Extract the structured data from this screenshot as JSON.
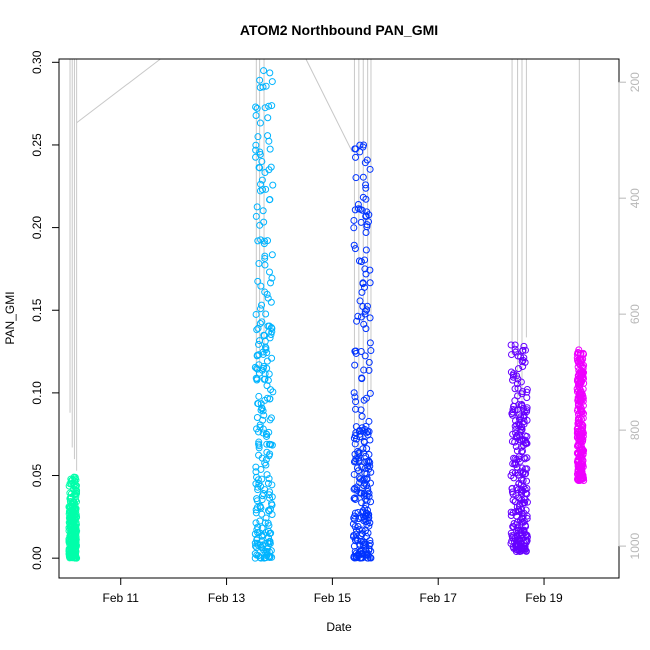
{
  "chart_data": {
    "type": "scatter",
    "title": "ATOM2 Northbound PAN_GMI",
    "xlabel": "Date",
    "ylabel": "PAN_GMI",
    "xlim": [
      "2017-02-09T20:00",
      "2017-02-20T10:00"
    ],
    "ylim": [
      -0.012,
      0.302
    ],
    "x_ticks": [
      {
        "label": "Feb 11",
        "date": "2017-02-11T00:00"
      },
      {
        "label": "Feb 13",
        "date": "2017-02-13T00:00"
      },
      {
        "label": "Feb 15",
        "date": "2017-02-15T00:00"
      },
      {
        "label": "Feb 17",
        "date": "2017-02-17T00:00"
      },
      {
        "label": "Feb 19",
        "date": "2017-02-19T00:00"
      }
    ],
    "y_ticks": [
      "0.00",
      "0.05",
      "0.10",
      "0.15",
      "0.20",
      "0.25",
      "0.30"
    ],
    "secondary_axis": {
      "side": "right",
      "color": "#b8b8b8",
      "reversed": true,
      "ylim": [
        1055,
        160
      ],
      "ticks": [
        "200",
        "400",
        "600",
        "800",
        "1000"
      ]
    },
    "grid": false,
    "legend": "none",
    "series": [
      {
        "color": "#00ffaa",
        "x_start": "2017-02-10T00:30",
        "x_end": "2017-02-10T04:00",
        "y_min": 0.0,
        "y_max": 0.049,
        "y_mid": 0.02
      },
      {
        "color": "#00b4ff",
        "x_start": "2017-02-13T13:00",
        "x_end": "2017-02-13T21:00",
        "y_min": 0.0,
        "y_max": 0.295,
        "y_mid": 0.09
      },
      {
        "color": "#0033ff",
        "x_start": "2017-02-15T09:30",
        "x_end": "2017-02-15T17:30",
        "y_min": 0.0,
        "y_max": 0.25,
        "y_mid": 0.05
      },
      {
        "color": "#6600ff",
        "x_start": "2017-02-18T09:00",
        "x_end": "2017-02-18T16:30",
        "y_min": 0.004,
        "y_max": 0.129,
        "y_mid": 0.06
      },
      {
        "color": "#ee00ff",
        "x_start": "2017-02-19T15:00",
        "x_end": "2017-02-19T18:00",
        "y_min": 0.047,
        "y_max": 0.126,
        "y_mid": 0.09
      }
    ],
    "pressure_trace": {
      "color": "#c8c8c8",
      "units_axis": "right",
      "description_free": true,
      "segments": [
        {
          "x": "2017-02-10T01:00",
          "p_from": 160,
          "p_to": 770
        },
        {
          "x": "2017-02-10T02:00",
          "p_from": 160,
          "p_to": 830
        },
        {
          "x": "2017-02-10T03:00",
          "p_from": 160,
          "p_to": 850
        },
        {
          "x": "2017-02-10T04:00",
          "p_from": 160,
          "p_to": 870
        },
        {
          "x": "2017-02-13T13:30",
          "p_from": 160,
          "p_to": 705
        },
        {
          "x": "2017-02-13T15:00",
          "p_from": 160,
          "p_to": 690
        },
        {
          "x": "2017-02-13T17:00",
          "p_from": 160,
          "p_to": 660
        },
        {
          "x": "2017-02-15T10:00",
          "p_from": 160,
          "p_to": 910
        },
        {
          "x": "2017-02-15T12:00",
          "p_from": 160,
          "p_to": 920
        },
        {
          "x": "2017-02-15T14:00",
          "p_from": 160,
          "p_to": 935
        },
        {
          "x": "2017-02-15T16:00",
          "p_from": 160,
          "p_to": 780
        },
        {
          "x": "2017-02-15T17:30",
          "p_from": 160,
          "p_to": 740
        },
        {
          "x": "2017-02-18T09:30",
          "p_from": 160,
          "p_to": 670
        },
        {
          "x": "2017-02-18T12:00",
          "p_from": 160,
          "p_to": 800
        },
        {
          "x": "2017-02-18T14:00",
          "p_from": 160,
          "p_to": 830
        },
        {
          "x": "2017-02-18T16:00",
          "p_from": 160,
          "p_to": 640
        },
        {
          "x": "2017-02-19T16:00",
          "p_from": 160,
          "p_to": 660
        }
      ],
      "connectors": [
        {
          "x1": "2017-02-10T04:00",
          "p1": 270,
          "x2": "2017-02-11T18:00",
          "p2": 160
        },
        {
          "x1": "2017-02-14T12:00",
          "p1": 160,
          "x2": "2017-02-15T09:00",
          "p2": 320
        }
      ]
    }
  }
}
